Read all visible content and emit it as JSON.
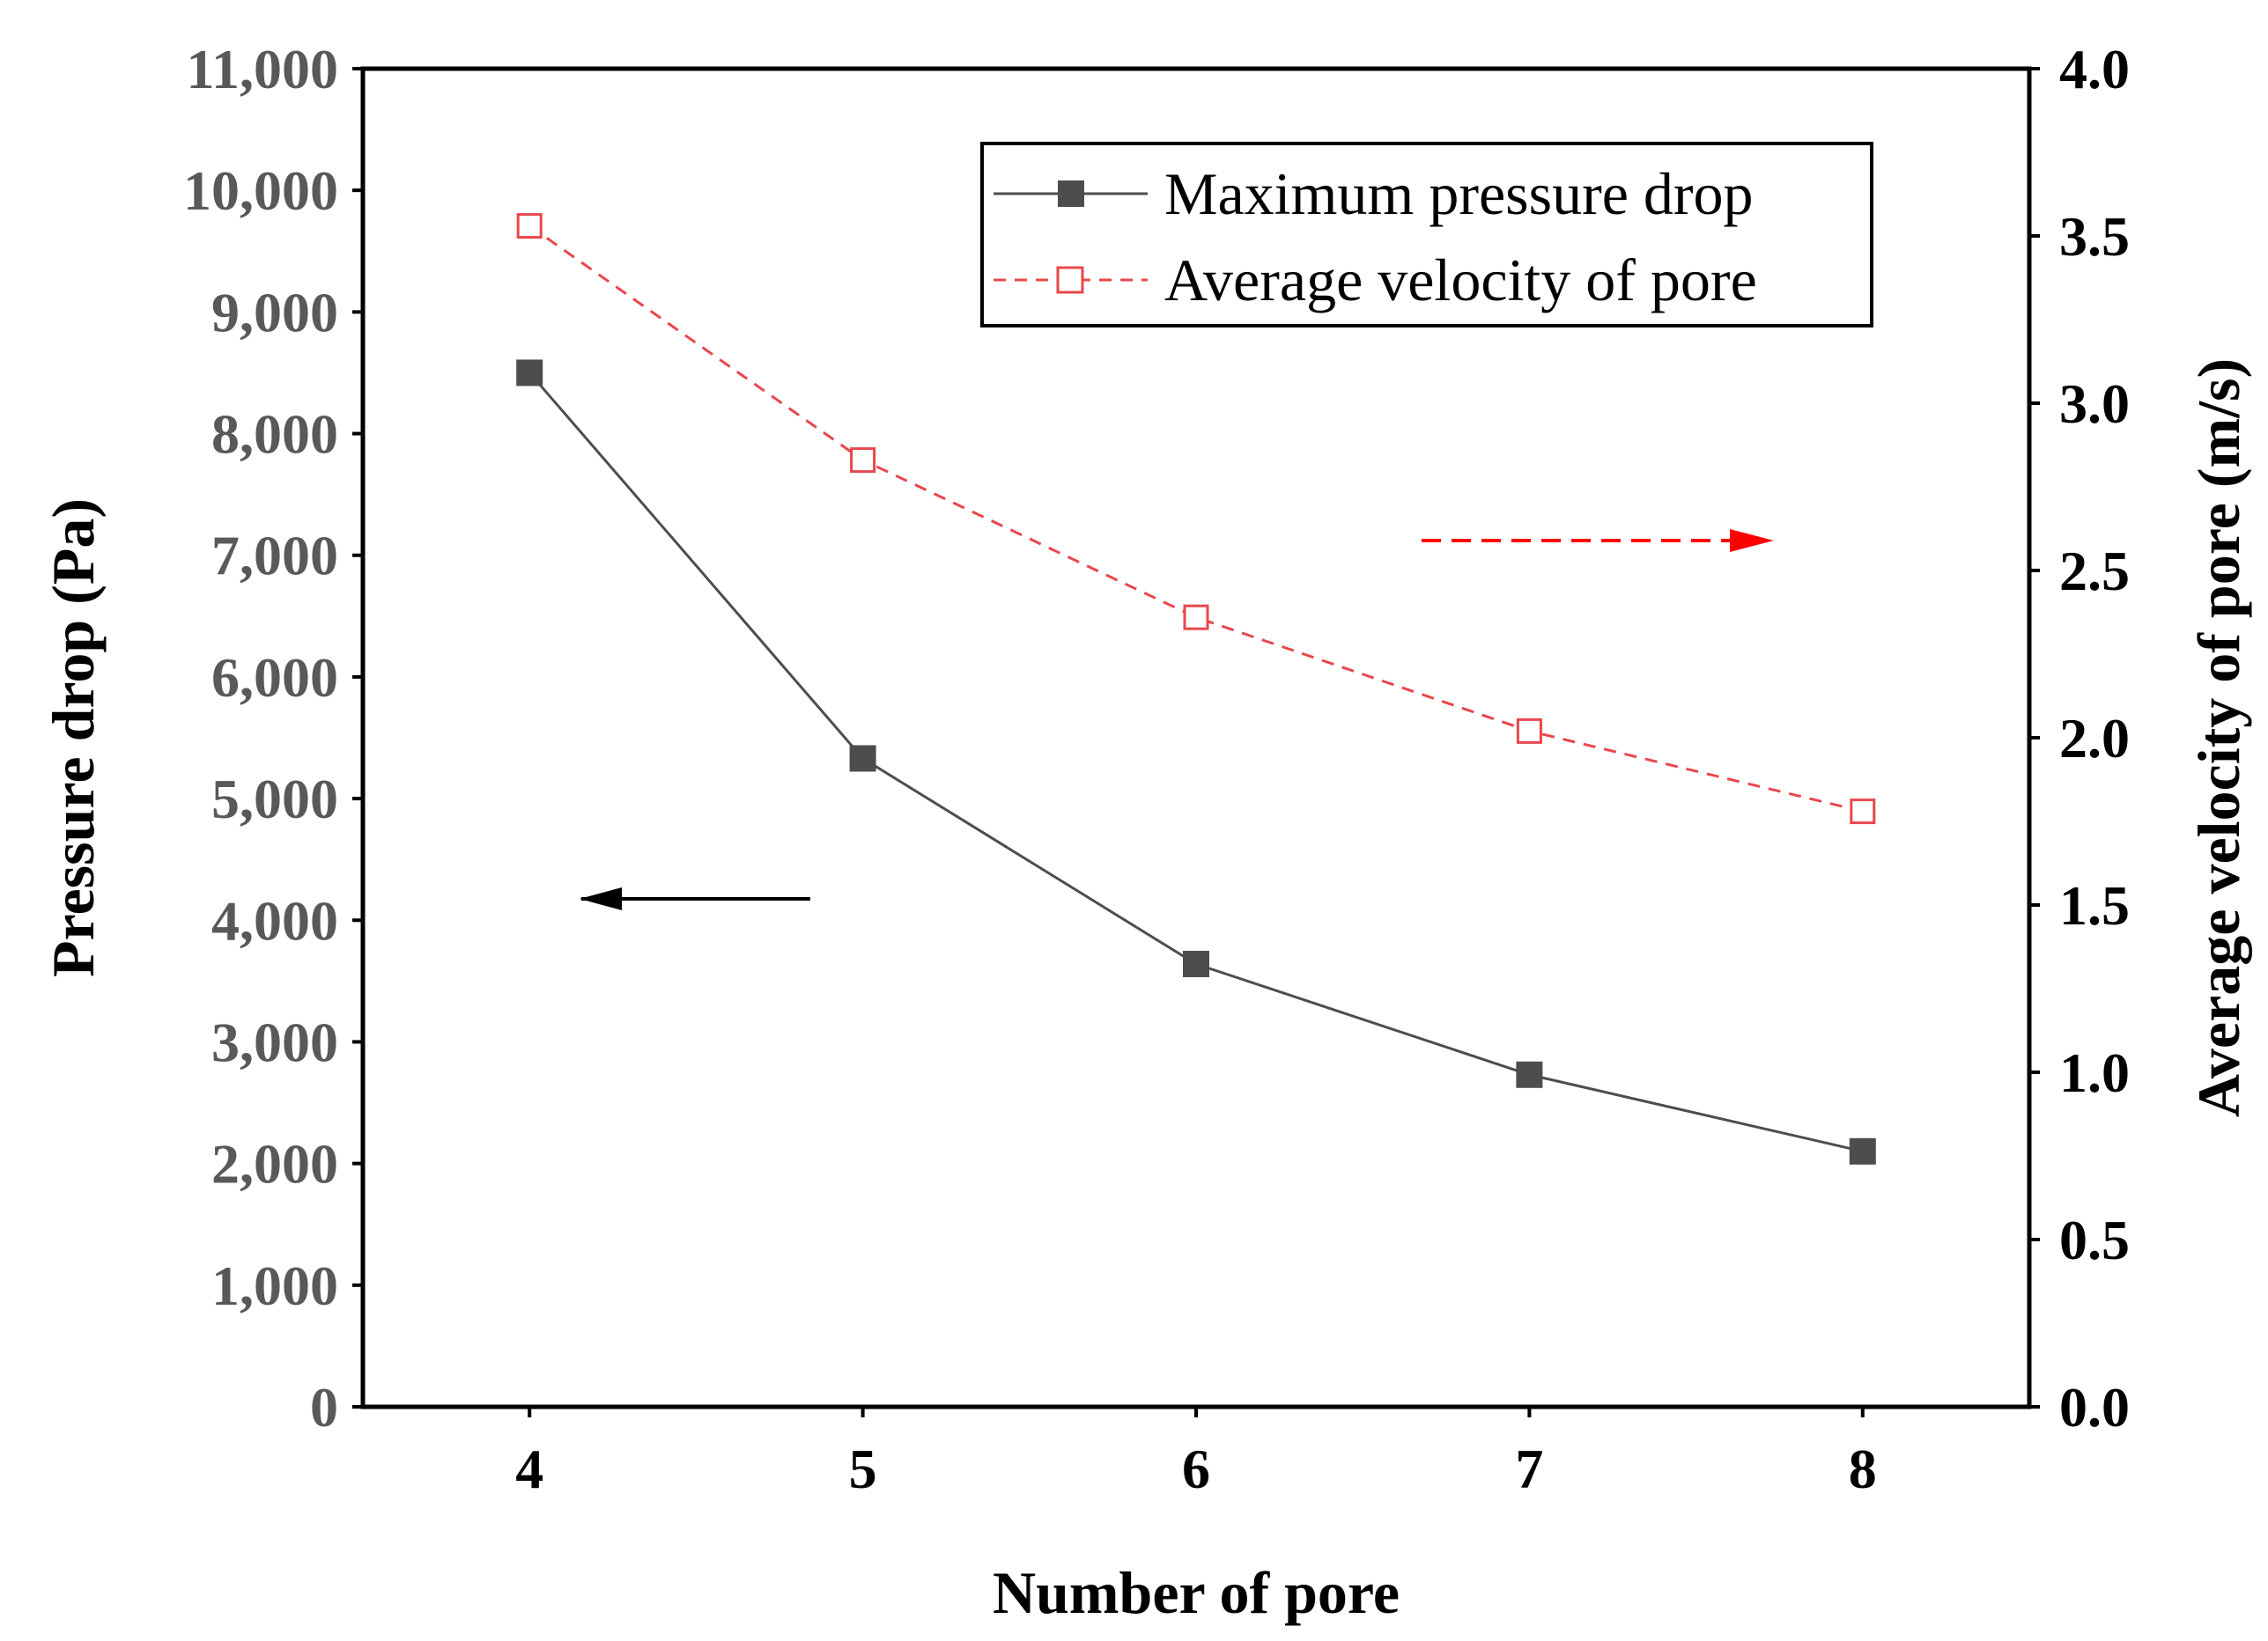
{
  "chart_data": {
    "type": "line",
    "title": "",
    "xlabel": "Number of pore",
    "ylabel": "Pressure drop (Pa)",
    "y2label": "Average velocity of pore (m/s)",
    "x": [
      4,
      5,
      6,
      7,
      8
    ],
    "xlim": [
      3.5,
      8.5
    ],
    "ylim": [
      0,
      11000
    ],
    "y2lim": [
      0.0,
      4.0
    ],
    "yticks": [
      "0",
      "1,000",
      "2,000",
      "3,000",
      "4,000",
      "5,000",
      "6,000",
      "7,000",
      "8,000",
      "9,000",
      "10,000",
      "11,000"
    ],
    "y2ticks": [
      "0.0",
      "0.5",
      "1.0",
      "1.5",
      "2.0",
      "2.5",
      "3.0",
      "3.5",
      "4.0"
    ],
    "xticks": [
      "4",
      "5",
      "6",
      "7",
      "8"
    ],
    "grid": false,
    "legend_position": "top-right",
    "series": [
      {
        "name": "Maximum pressure drop",
        "axis": "left",
        "values": [
          8500,
          5330,
          3640,
          2730,
          2100
        ],
        "color": "#4d4d4d",
        "marker": "filled-square",
        "line": "solid"
      },
      {
        "name": "Average velocity of pore",
        "axis": "right",
        "values": [
          3.53,
          2.83,
          2.36,
          2.02,
          1.78
        ],
        "color": "#e8474d",
        "marker": "open-square",
        "line": "dashed"
      }
    ],
    "annotations": [
      {
        "type": "arrow",
        "direction": "left",
        "meaning": "left axis",
        "color": "#000000"
      },
      {
        "type": "arrow",
        "direction": "right",
        "meaning": "right axis",
        "color": "#ff0000"
      }
    ]
  }
}
